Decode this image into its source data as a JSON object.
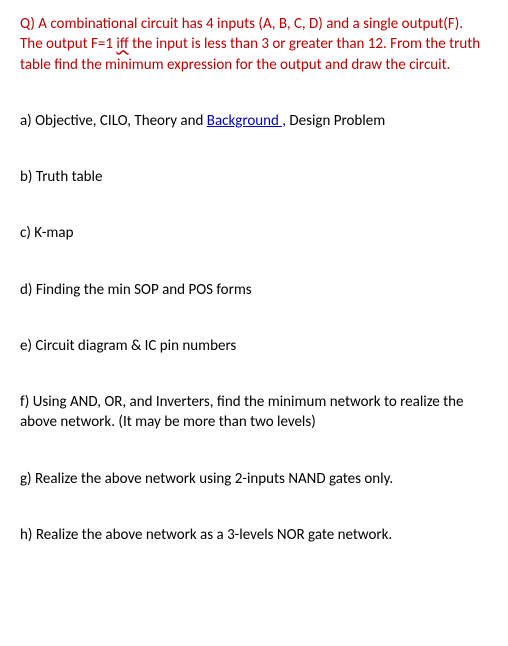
{
  "question": {
    "prefix": "Q) A combinational circuit has 4 inputs (A, B, C, D) and a single output(F). The output F=1 ",
    "iff": "iff",
    "suffix": " the input is less than 3 or greater than 12. From the truth table find the minimum expression for the output and draw the circuit."
  },
  "sections": {
    "a_prefix": "a) Objective, CILO, Theory and ",
    "a_link": "Background ,",
    "a_suffix": " Design Problem",
    "b": "b) Truth table",
    "c": "c) K-map",
    "d": "d) Finding the min SOP and POS forms",
    "e": "e) Circuit diagram & IC pin numbers",
    "f": "f) Using AND, OR, and Inverters, find the minimum network to realize the above network. (It may be more than two levels)",
    "g": "g) Realize the above network using 2-inputs NAND gates only.",
    "h": "h) Realize the above network as a 3-levels NOR gate network."
  }
}
